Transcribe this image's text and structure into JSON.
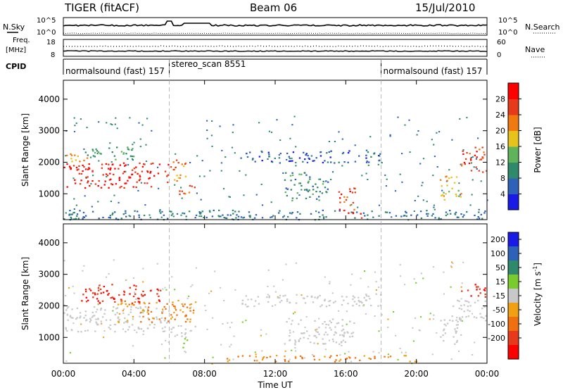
{
  "header": {
    "title": "TIGER (fitACF)",
    "beam": "Beam 06",
    "date": "15/Jul/2010"
  },
  "status_panels": {
    "nsky_label": "N.Sky",
    "nsky_ticks": [
      "10^5",
      "10^0"
    ],
    "nsearch_label": "N.Search",
    "nsearch_ticks": [
      "10^5",
      "10^0"
    ],
    "freq_label_1": "Freq.",
    "freq_label_2": "[MHz]",
    "freq_ticks": [
      "18",
      "8"
    ],
    "nave_label": "Nave",
    "nave_ticks": [
      "60",
      "0"
    ],
    "cpid_label": "CPID",
    "cpid_segments": [
      {
        "name": "normalsound (fast) 157",
        "start_hour": 0,
        "end_hour": 6
      },
      {
        "name": "stereo_scan 8551",
        "start_hour": 6,
        "end_hour": 18
      },
      {
        "name": "normalsound (fast) 157",
        "start_hour": 18,
        "end_hour": 24
      }
    ]
  },
  "x_axis": {
    "label": "Time UT",
    "ticks": [
      "00:00",
      "04:00",
      "08:00",
      "12:00",
      "16:00",
      "20:00",
      "00:00"
    ],
    "range_hours": [
      0,
      24
    ]
  },
  "y_axis": {
    "label": "Slant Range [km]",
    "ticks": [
      "1000",
      "2000",
      "3000",
      "4000"
    ],
    "range_km": [
      180,
      4600
    ]
  },
  "power_colorbar": {
    "label": "Power [dB]",
    "ticks": [
      "4",
      "8",
      "12",
      "16",
      "20",
      "24",
      "28"
    ],
    "colors": [
      "#1a1ae6",
      "#2e62b8",
      "#2e8a6a",
      "#5fb35a",
      "#e6c21a",
      "#f07a10",
      "#e63a1a",
      "#ff0000"
    ]
  },
  "velocity_colorbar": {
    "label": "Velocity [m s-1]",
    "label_main": "Velocity [m s",
    "label_sup": "-1",
    "label_end": "]",
    "ticks": [
      "200",
      "100",
      "50",
      "15",
      "-15",
      "-50",
      "-100",
      "-200"
    ],
    "colors": [
      "#1a1ae6",
      "#2e62b8",
      "#2e8a6a",
      "#7acc2e",
      "#c8c8c8",
      "#f0a010",
      "#f07010",
      "#e63a1a",
      "#ff0000"
    ]
  },
  "chart_data": [
    {
      "type": "heatmap",
      "title": "Power",
      "xlabel": "Time UT",
      "ylabel": "Slant Range [km]",
      "xlim_hours": [
        0,
        24
      ],
      "ylim_km": [
        180,
        4600
      ],
      "colorbar": "Power [dB]",
      "regions": [
        {
          "t0": 0.0,
          "t1": 6.0,
          "r0": 1200,
          "r1": 2000,
          "value": 28
        },
        {
          "t0": 0.0,
          "t1": 1.5,
          "r0": 2000,
          "r1": 2300,
          "value": 20
        },
        {
          "t0": 1.0,
          "t1": 4.0,
          "r0": 2100,
          "r1": 2500,
          "value": 12
        },
        {
          "t0": 6.0,
          "t1": 7.0,
          "r0": 1400,
          "r1": 2100,
          "value": 22
        },
        {
          "t0": 6.5,
          "t1": 7.4,
          "r0": 900,
          "r1": 1300,
          "value": 24
        },
        {
          "t0": 10.0,
          "t1": 18.0,
          "r0": 2000,
          "r1": 2400,
          "value": 6
        },
        {
          "t0": 12.5,
          "t1": 15.0,
          "r0": 800,
          "r1": 1700,
          "value": 10
        },
        {
          "t0": 15.5,
          "t1": 16.5,
          "r0": 500,
          "r1": 1200,
          "value": 26
        },
        {
          "t0": 15.8,
          "t1": 17.0,
          "r0": 250,
          "r1": 500,
          "value": 30
        },
        {
          "t0": 0.0,
          "t1": 24.0,
          "r0": 200,
          "r1": 500,
          "value": 8
        },
        {
          "t0": 21.3,
          "t1": 22.5,
          "r0": 800,
          "r1": 1600,
          "value": 18
        },
        {
          "t0": 22.5,
          "t1": 24.0,
          "r0": 1700,
          "r1": 2500,
          "value": 26
        }
      ]
    },
    {
      "type": "heatmap",
      "title": "Velocity",
      "xlabel": "Time UT",
      "ylabel": "Slant Range [km]",
      "xlim_hours": [
        0,
        24
      ],
      "ylim_km": [
        180,
        4600
      ],
      "colorbar": "Velocity [m s-1]",
      "regions": [
        {
          "t0": 0.0,
          "t1": 6.0,
          "r0": 1200,
          "r1": 2000,
          "value": 0
        },
        {
          "t0": 1.0,
          "t1": 5.5,
          "r0": 2100,
          "r1": 2700,
          "value": -200
        },
        {
          "t0": 3.0,
          "t1": 7.5,
          "r0": 1500,
          "r1": 2200,
          "value": -50
        },
        {
          "t0": 6.0,
          "t1": 7.5,
          "r0": 1000,
          "r1": 1400,
          "value": 0
        },
        {
          "t0": 6.5,
          "t1": 7.0,
          "r0": 700,
          "r1": 1000,
          "value": 30
        },
        {
          "t0": 10.0,
          "t1": 18.0,
          "r0": 2000,
          "r1": 2400,
          "value": 0
        },
        {
          "t0": 12.5,
          "t1": 16.5,
          "r0": 800,
          "r1": 1600,
          "value": 0
        },
        {
          "t0": 9.0,
          "t1": 20.0,
          "r0": 250,
          "r1": 450,
          "value": -50
        },
        {
          "t0": 21.3,
          "t1": 22.5,
          "r0": 800,
          "r1": 1700,
          "value": 0
        },
        {
          "t0": 22.5,
          "t1": 24.0,
          "r0": 2300,
          "r1": 2700,
          "value": -200
        },
        {
          "t0": 22.0,
          "t1": 24.0,
          "r0": 1500,
          "r1": 2200,
          "value": 0
        }
      ]
    }
  ]
}
